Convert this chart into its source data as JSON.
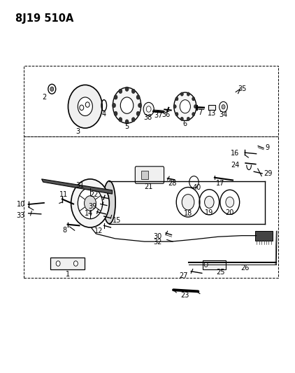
{
  "title": "8J19 510A",
  "background_color": "#ffffff",
  "line_color": "#000000",
  "title_fontsize": 10.5,
  "label_fontsize": 7.0,
  "figsize": [
    4.22,
    5.33
  ],
  "dpi": 100
}
